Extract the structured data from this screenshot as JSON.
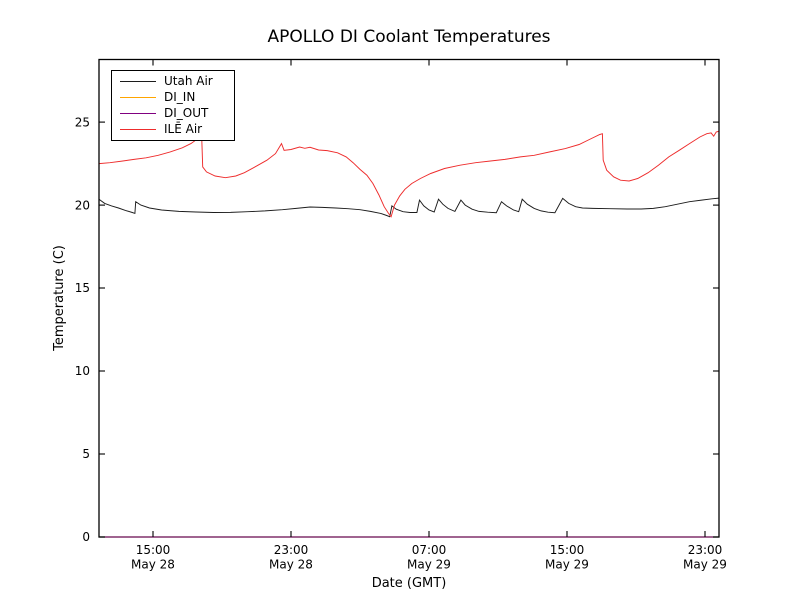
{
  "chart_data": {
    "type": "line",
    "title": "APOLLO DI Coolant Temperatures",
    "xlabel": "Date (GMT)",
    "ylabel": "Temperature (C)",
    "grid": false,
    "legend_position": "upper left",
    "xlim_hours": [
      11.87,
      47.81
    ],
    "ylim": [
      0,
      28.77
    ],
    "x_ticks": [
      {
        "hour": 15,
        "time": "15:00",
        "date": "May 28"
      },
      {
        "hour": 23,
        "time": "23:00",
        "date": "May 28"
      },
      {
        "hour": 31,
        "time": "07:00",
        "date": "May 29"
      },
      {
        "hour": 39,
        "time": "15:00",
        "date": "May 29"
      },
      {
        "hour": 47,
        "time": "23:00",
        "date": "May 29"
      }
    ],
    "y_ticks": [
      {
        "value": 0,
        "label": "0"
      },
      {
        "value": 5,
        "label": "5"
      },
      {
        "value": 10,
        "label": "10"
      },
      {
        "value": 15,
        "label": "15"
      },
      {
        "value": 20,
        "label": "20"
      },
      {
        "value": 25,
        "label": "25"
      }
    ],
    "series": [
      {
        "name": "Utah Air",
        "color": "#1c1c1c",
        "points": [
          [
            11.87,
            20.35
          ],
          [
            12.2,
            20.1
          ],
          [
            12.6,
            19.95
          ],
          [
            13.0,
            19.82
          ],
          [
            13.4,
            19.68
          ],
          [
            13.8,
            19.55
          ],
          [
            13.95,
            19.5
          ],
          [
            14.0,
            20.2
          ],
          [
            14.3,
            20.0
          ],
          [
            14.8,
            19.82
          ],
          [
            15.5,
            19.7
          ],
          [
            16.5,
            19.62
          ],
          [
            17.5,
            19.58
          ],
          [
            18.5,
            19.55
          ],
          [
            19.5,
            19.56
          ],
          [
            20.5,
            19.6
          ],
          [
            21.5,
            19.65
          ],
          [
            22.5,
            19.72
          ],
          [
            23.3,
            19.8
          ],
          [
            24.1,
            19.88
          ],
          [
            24.8,
            19.86
          ],
          [
            25.6,
            19.82
          ],
          [
            26.3,
            19.78
          ],
          [
            27.0,
            19.72
          ],
          [
            27.6,
            19.62
          ],
          [
            28.2,
            19.5
          ],
          [
            28.55,
            19.37
          ],
          [
            28.72,
            19.3
          ],
          [
            28.85,
            19.95
          ],
          [
            29.1,
            19.75
          ],
          [
            29.5,
            19.6
          ],
          [
            29.9,
            19.55
          ],
          [
            30.3,
            19.55
          ],
          [
            30.45,
            20.3
          ],
          [
            30.7,
            19.95
          ],
          [
            31.0,
            19.7
          ],
          [
            31.3,
            19.58
          ],
          [
            31.55,
            20.35
          ],
          [
            31.8,
            20.05
          ],
          [
            32.1,
            19.8
          ],
          [
            32.5,
            19.62
          ],
          [
            32.85,
            20.3
          ],
          [
            33.1,
            20.0
          ],
          [
            33.5,
            19.75
          ],
          [
            33.9,
            19.62
          ],
          [
            34.4,
            19.57
          ],
          [
            34.9,
            19.54
          ],
          [
            35.2,
            20.2
          ],
          [
            35.5,
            19.95
          ],
          [
            35.9,
            19.7
          ],
          [
            36.2,
            19.6
          ],
          [
            36.4,
            20.35
          ],
          [
            36.7,
            20.05
          ],
          [
            37.1,
            19.8
          ],
          [
            37.5,
            19.65
          ],
          [
            37.9,
            19.57
          ],
          [
            38.3,
            19.54
          ],
          [
            38.75,
            20.4
          ],
          [
            39.1,
            20.1
          ],
          [
            39.5,
            19.9
          ],
          [
            39.9,
            19.82
          ],
          [
            40.5,
            19.8
          ],
          [
            41.5,
            19.78
          ],
          [
            42.5,
            19.76
          ],
          [
            43.3,
            19.76
          ],
          [
            44.0,
            19.8
          ],
          [
            44.7,
            19.9
          ],
          [
            45.4,
            20.05
          ],
          [
            46.1,
            20.2
          ],
          [
            46.8,
            20.3
          ],
          [
            47.4,
            20.38
          ],
          [
            47.81,
            20.42
          ]
        ]
      },
      {
        "name": "DI_IN",
        "color": "#ffa500",
        "points": [
          [
            11.87,
            0
          ],
          [
            47.81,
            0
          ]
        ]
      },
      {
        "name": "DI_OUT",
        "color": "#800080",
        "points": [
          [
            11.87,
            0
          ],
          [
            47.81,
            0
          ]
        ]
      },
      {
        "name": "ILĒ Air",
        "color": "#ee2c2c",
        "points": [
          [
            11.87,
            22.5
          ],
          [
            12.5,
            22.55
          ],
          [
            13.2,
            22.65
          ],
          [
            13.9,
            22.75
          ],
          [
            14.6,
            22.85
          ],
          [
            15.3,
            23.0
          ],
          [
            16.0,
            23.2
          ],
          [
            16.7,
            23.45
          ],
          [
            17.2,
            23.7
          ],
          [
            17.6,
            24.0
          ],
          [
            17.82,
            24.3
          ],
          [
            17.88,
            22.3
          ],
          [
            18.1,
            22.0
          ],
          [
            18.6,
            21.75
          ],
          [
            19.2,
            21.65
          ],
          [
            19.8,
            21.75
          ],
          [
            20.3,
            21.95
          ],
          [
            21.0,
            22.35
          ],
          [
            21.6,
            22.7
          ],
          [
            22.1,
            23.1
          ],
          [
            22.45,
            23.7
          ],
          [
            22.6,
            23.3
          ],
          [
            23.0,
            23.35
          ],
          [
            23.5,
            23.5
          ],
          [
            23.8,
            23.42
          ],
          [
            24.1,
            23.48
          ],
          [
            24.6,
            23.32
          ],
          [
            25.1,
            23.28
          ],
          [
            25.7,
            23.15
          ],
          [
            26.2,
            22.9
          ],
          [
            26.6,
            22.55
          ],
          [
            27.0,
            22.15
          ],
          [
            27.4,
            21.8
          ],
          [
            27.75,
            21.3
          ],
          [
            28.1,
            20.6
          ],
          [
            28.4,
            19.9
          ],
          [
            28.65,
            19.5
          ],
          [
            28.8,
            19.3
          ],
          [
            29.0,
            20.0
          ],
          [
            29.3,
            20.55
          ],
          [
            29.6,
            20.95
          ],
          [
            30.0,
            21.3
          ],
          [
            30.5,
            21.6
          ],
          [
            31.1,
            21.9
          ],
          [
            31.9,
            22.2
          ],
          [
            32.8,
            22.4
          ],
          [
            33.7,
            22.55
          ],
          [
            34.5,
            22.65
          ],
          [
            35.4,
            22.75
          ],
          [
            36.3,
            22.9
          ],
          [
            37.1,
            23.0
          ],
          [
            38.0,
            23.2
          ],
          [
            38.9,
            23.4
          ],
          [
            39.7,
            23.65
          ],
          [
            40.3,
            23.95
          ],
          [
            40.9,
            24.25
          ],
          [
            41.05,
            24.3
          ],
          [
            41.1,
            22.7
          ],
          [
            41.3,
            22.1
          ],
          [
            41.7,
            21.7
          ],
          [
            42.1,
            21.5
          ],
          [
            42.6,
            21.45
          ],
          [
            43.1,
            21.6
          ],
          [
            43.7,
            21.95
          ],
          [
            44.3,
            22.4
          ],
          [
            44.9,
            22.9
          ],
          [
            45.5,
            23.3
          ],
          [
            46.1,
            23.7
          ],
          [
            46.7,
            24.1
          ],
          [
            47.1,
            24.3
          ],
          [
            47.35,
            24.35
          ],
          [
            47.5,
            24.15
          ],
          [
            47.65,
            24.4
          ],
          [
            47.81,
            24.45
          ]
        ]
      }
    ]
  }
}
